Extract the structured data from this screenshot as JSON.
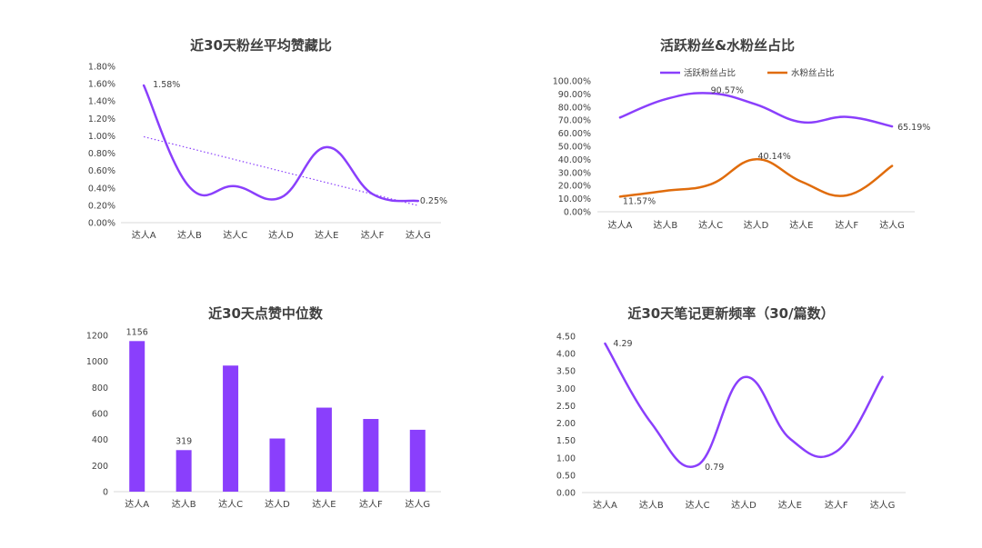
{
  "colors": {
    "purple": "#8a3ffc",
    "orange": "#e06c0c",
    "axis": "#d9d9d9",
    "text": "#404040"
  },
  "chart_data": [
    {
      "type": "line",
      "title": "近30天粉丝平均赞藏比",
      "categories": [
        "达人A",
        "达人B",
        "达人C",
        "达人D",
        "达人E",
        "达人F",
        "达人G"
      ],
      "series": [
        {
          "values": [
            1.58,
            0.41,
            0.42,
            0.29,
            0.87,
            0.33,
            0.25
          ]
        }
      ],
      "trendline": {
        "type": "linear",
        "dotted": true
      },
      "yticks": [
        "0.00%",
        "0.20%",
        "0.40%",
        "0.60%",
        "0.80%",
        "1.00%",
        "1.20%",
        "1.40%",
        "1.60%",
        "1.80%"
      ],
      "ylim": [
        0,
        1.8
      ],
      "data_labels": [
        {
          "index": 0,
          "text": "1.58%"
        },
        {
          "index": 6,
          "text": "0.25%"
        }
      ]
    },
    {
      "type": "line",
      "title": "活跃粉丝&水粉丝占比",
      "categories": [
        "达人A",
        "达人B",
        "达人C",
        "达人D",
        "达人E",
        "达人F",
        "达人G"
      ],
      "legend": {
        "position": "top"
      },
      "series": [
        {
          "name": "活跃粉丝占比",
          "values": [
            72,
            86,
            90.57,
            82,
            68.5,
            72.5,
            65.19
          ],
          "color": "purple",
          "data_labels": [
            {
              "index": 2,
              "text": "90.57%"
            },
            {
              "index": 6,
              "text": "65.19%"
            }
          ]
        },
        {
          "name": "水粉丝占比",
          "values": [
            11.57,
            16,
            21,
            40.14,
            23,
            12.5,
            35
          ],
          "color": "orange",
          "data_labels": [
            {
              "index": 0,
              "text": "11.57%"
            },
            {
              "index": 3,
              "text": "40.14%"
            }
          ]
        }
      ],
      "yticks": [
        "0.00%",
        "10.00%",
        "20.00%",
        "30.00%",
        "40.00%",
        "50.00%",
        "60.00%",
        "70.00%",
        "80.00%",
        "90.00%",
        "100.00%"
      ],
      "ylim": [
        0,
        100
      ]
    },
    {
      "type": "bar",
      "title": "近30天点赞中位数",
      "categories": [
        "达人A",
        "达人B",
        "达人C",
        "达人D",
        "达人E",
        "达人F",
        "达人G"
      ],
      "values": [
        1156,
        319,
        968,
        408,
        645,
        558,
        475
      ],
      "yticks": [
        "0",
        "200",
        "400",
        "600",
        "800",
        "1000",
        "1200"
      ],
      "ylim": [
        0,
        1200
      ],
      "data_labels": [
        {
          "index": 0,
          "text": "1156"
        },
        {
          "index": 1,
          "text": "319"
        }
      ]
    },
    {
      "type": "line",
      "title": "近30天笔记更新频率（30/篇数）",
      "categories": [
        "达人A",
        "达人B",
        "达人C",
        "达人D",
        "达人E",
        "达人F",
        "达人G"
      ],
      "series": [
        {
          "values": [
            4.29,
            2.0,
            0.79,
            3.32,
            1.55,
            1.18,
            3.33
          ]
        }
      ],
      "yticks": [
        "0.00",
        "0.50",
        "1.00",
        "1.50",
        "2.00",
        "2.50",
        "3.00",
        "3.50",
        "4.00",
        "4.50"
      ],
      "ylim": [
        0,
        4.5
      ],
      "data_labels": [
        {
          "index": 0,
          "text": "4.29"
        },
        {
          "index": 2,
          "text": "0.79"
        }
      ]
    }
  ]
}
